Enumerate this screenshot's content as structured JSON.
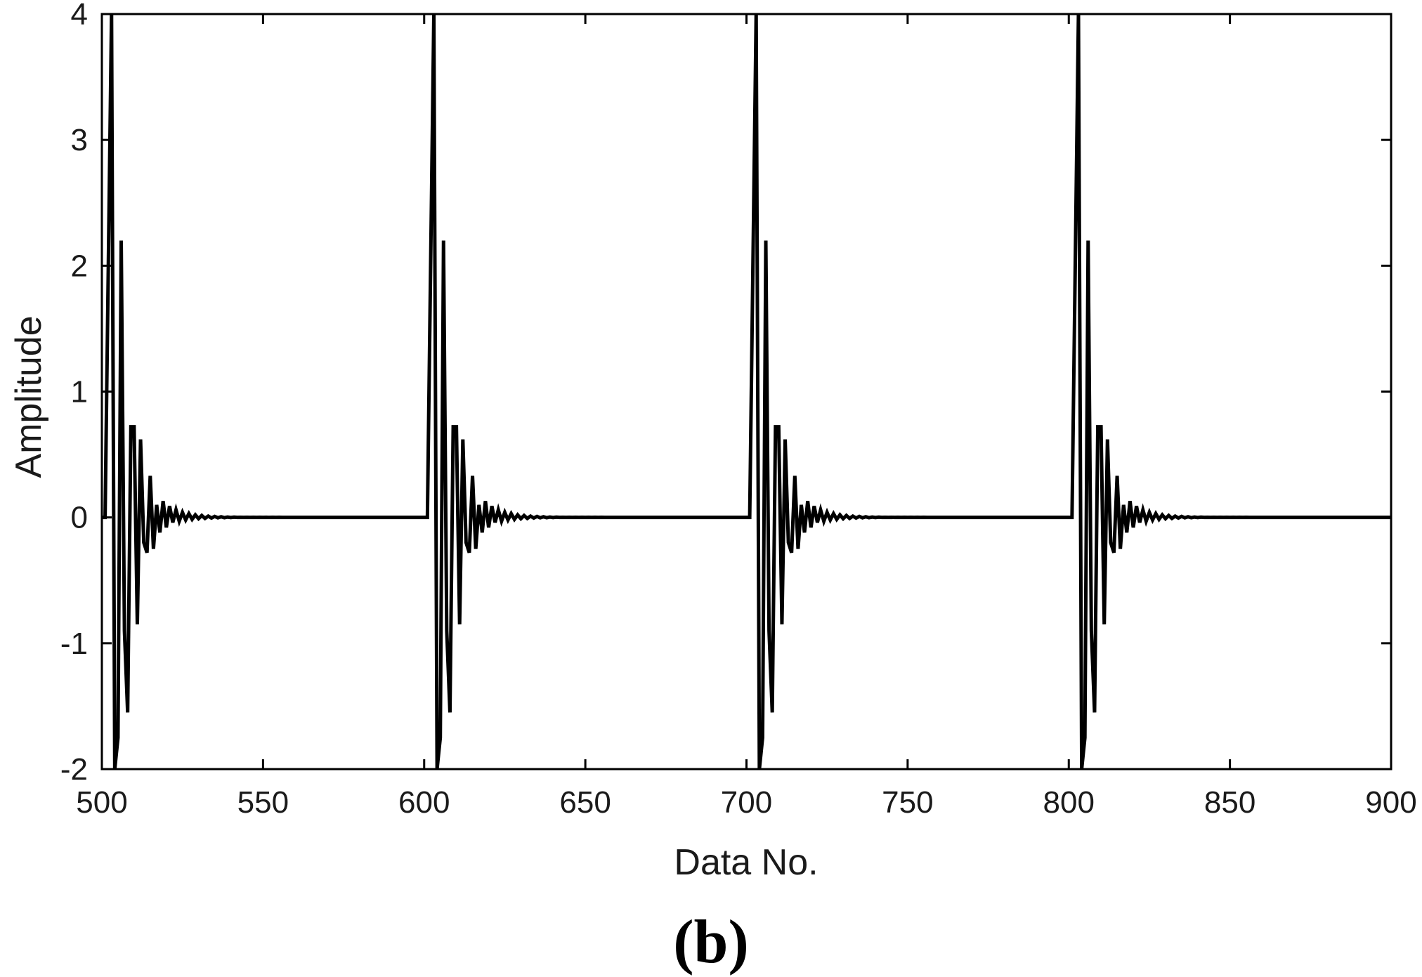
{
  "panel_label": "(b)",
  "chart_data": {
    "type": "line",
    "title": "",
    "xlabel": "Data No.",
    "ylabel": "Amplitude",
    "xlim": [
      500,
      900
    ],
    "ylim": [
      -2,
      4
    ],
    "xticks": [
      500,
      550,
      600,
      650,
      700,
      750,
      800,
      850,
      900
    ],
    "yticks": [
      -2,
      -1,
      0,
      1,
      2,
      3,
      4
    ],
    "grid": false,
    "legend": "none",
    "line_color": "#000000",
    "series": [
      {
        "name": "",
        "pulse_starts": [
          501,
          601,
          701,
          801
        ],
        "pulse_response": [
          0,
          2.0,
          4.0,
          -2.0,
          -1.75,
          2.2,
          -0.9,
          -1.55,
          0.72,
          0.72,
          -0.85,
          0.62,
          -0.2,
          -0.28,
          0.33,
          -0.25,
          0.1,
          -0.12,
          0.13,
          -0.08,
          0.09,
          -0.04,
          0.06,
          -0.03,
          0.04,
          -0.02,
          0.03,
          -0.015,
          0.02,
          -0.01,
          0.015,
          -0.008,
          0.01,
          -0.005,
          0.008,
          -0.003,
          0.005,
          -0.002,
          0.003,
          -0.001,
          0.002,
          0,
          0.001,
          0,
          0.001,
          0,
          0.001,
          0,
          0.001,
          0,
          0.001,
          0,
          0.001,
          0,
          0.001,
          0
        ],
        "baseline": 0
      }
    ]
  }
}
